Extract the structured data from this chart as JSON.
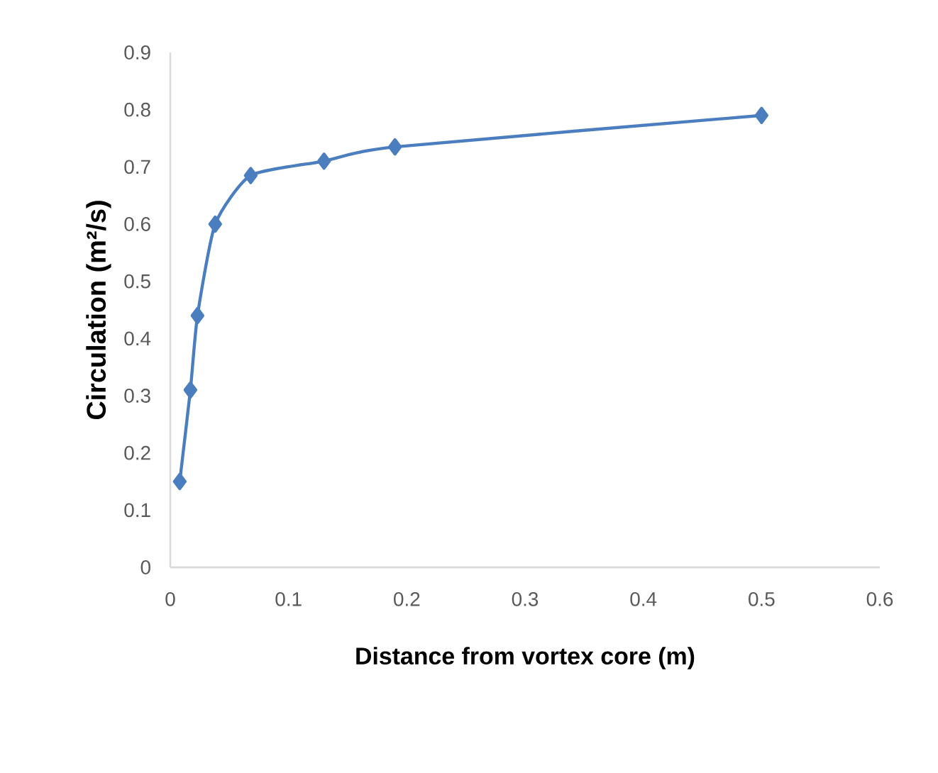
{
  "chart_data": {
    "type": "line",
    "xlabel": "Distance from vortex core (m)",
    "ylabel": "Circulation (m²/s)",
    "x": [
      0.008,
      0.017,
      0.023,
      0.038,
      0.068,
      0.13,
      0.19,
      0.5
    ],
    "series": [
      {
        "color": "#4a7ebf",
        "values": [
          0.15,
          0.31,
          0.44,
          0.6,
          0.685,
          0.71,
          0.735,
          0.79
        ]
      }
    ],
    "xlim": [
      0,
      0.6
    ],
    "xticks": [
      0,
      0.1,
      0.2,
      0.3,
      0.4,
      0.5,
      0.6
    ],
    "ylim": [
      0,
      0.9
    ],
    "yticks": [
      0,
      0.1,
      0.2,
      0.3,
      0.4,
      0.5,
      0.6,
      0.7,
      0.8,
      0.9
    ],
    "marker": "diamond"
  }
}
